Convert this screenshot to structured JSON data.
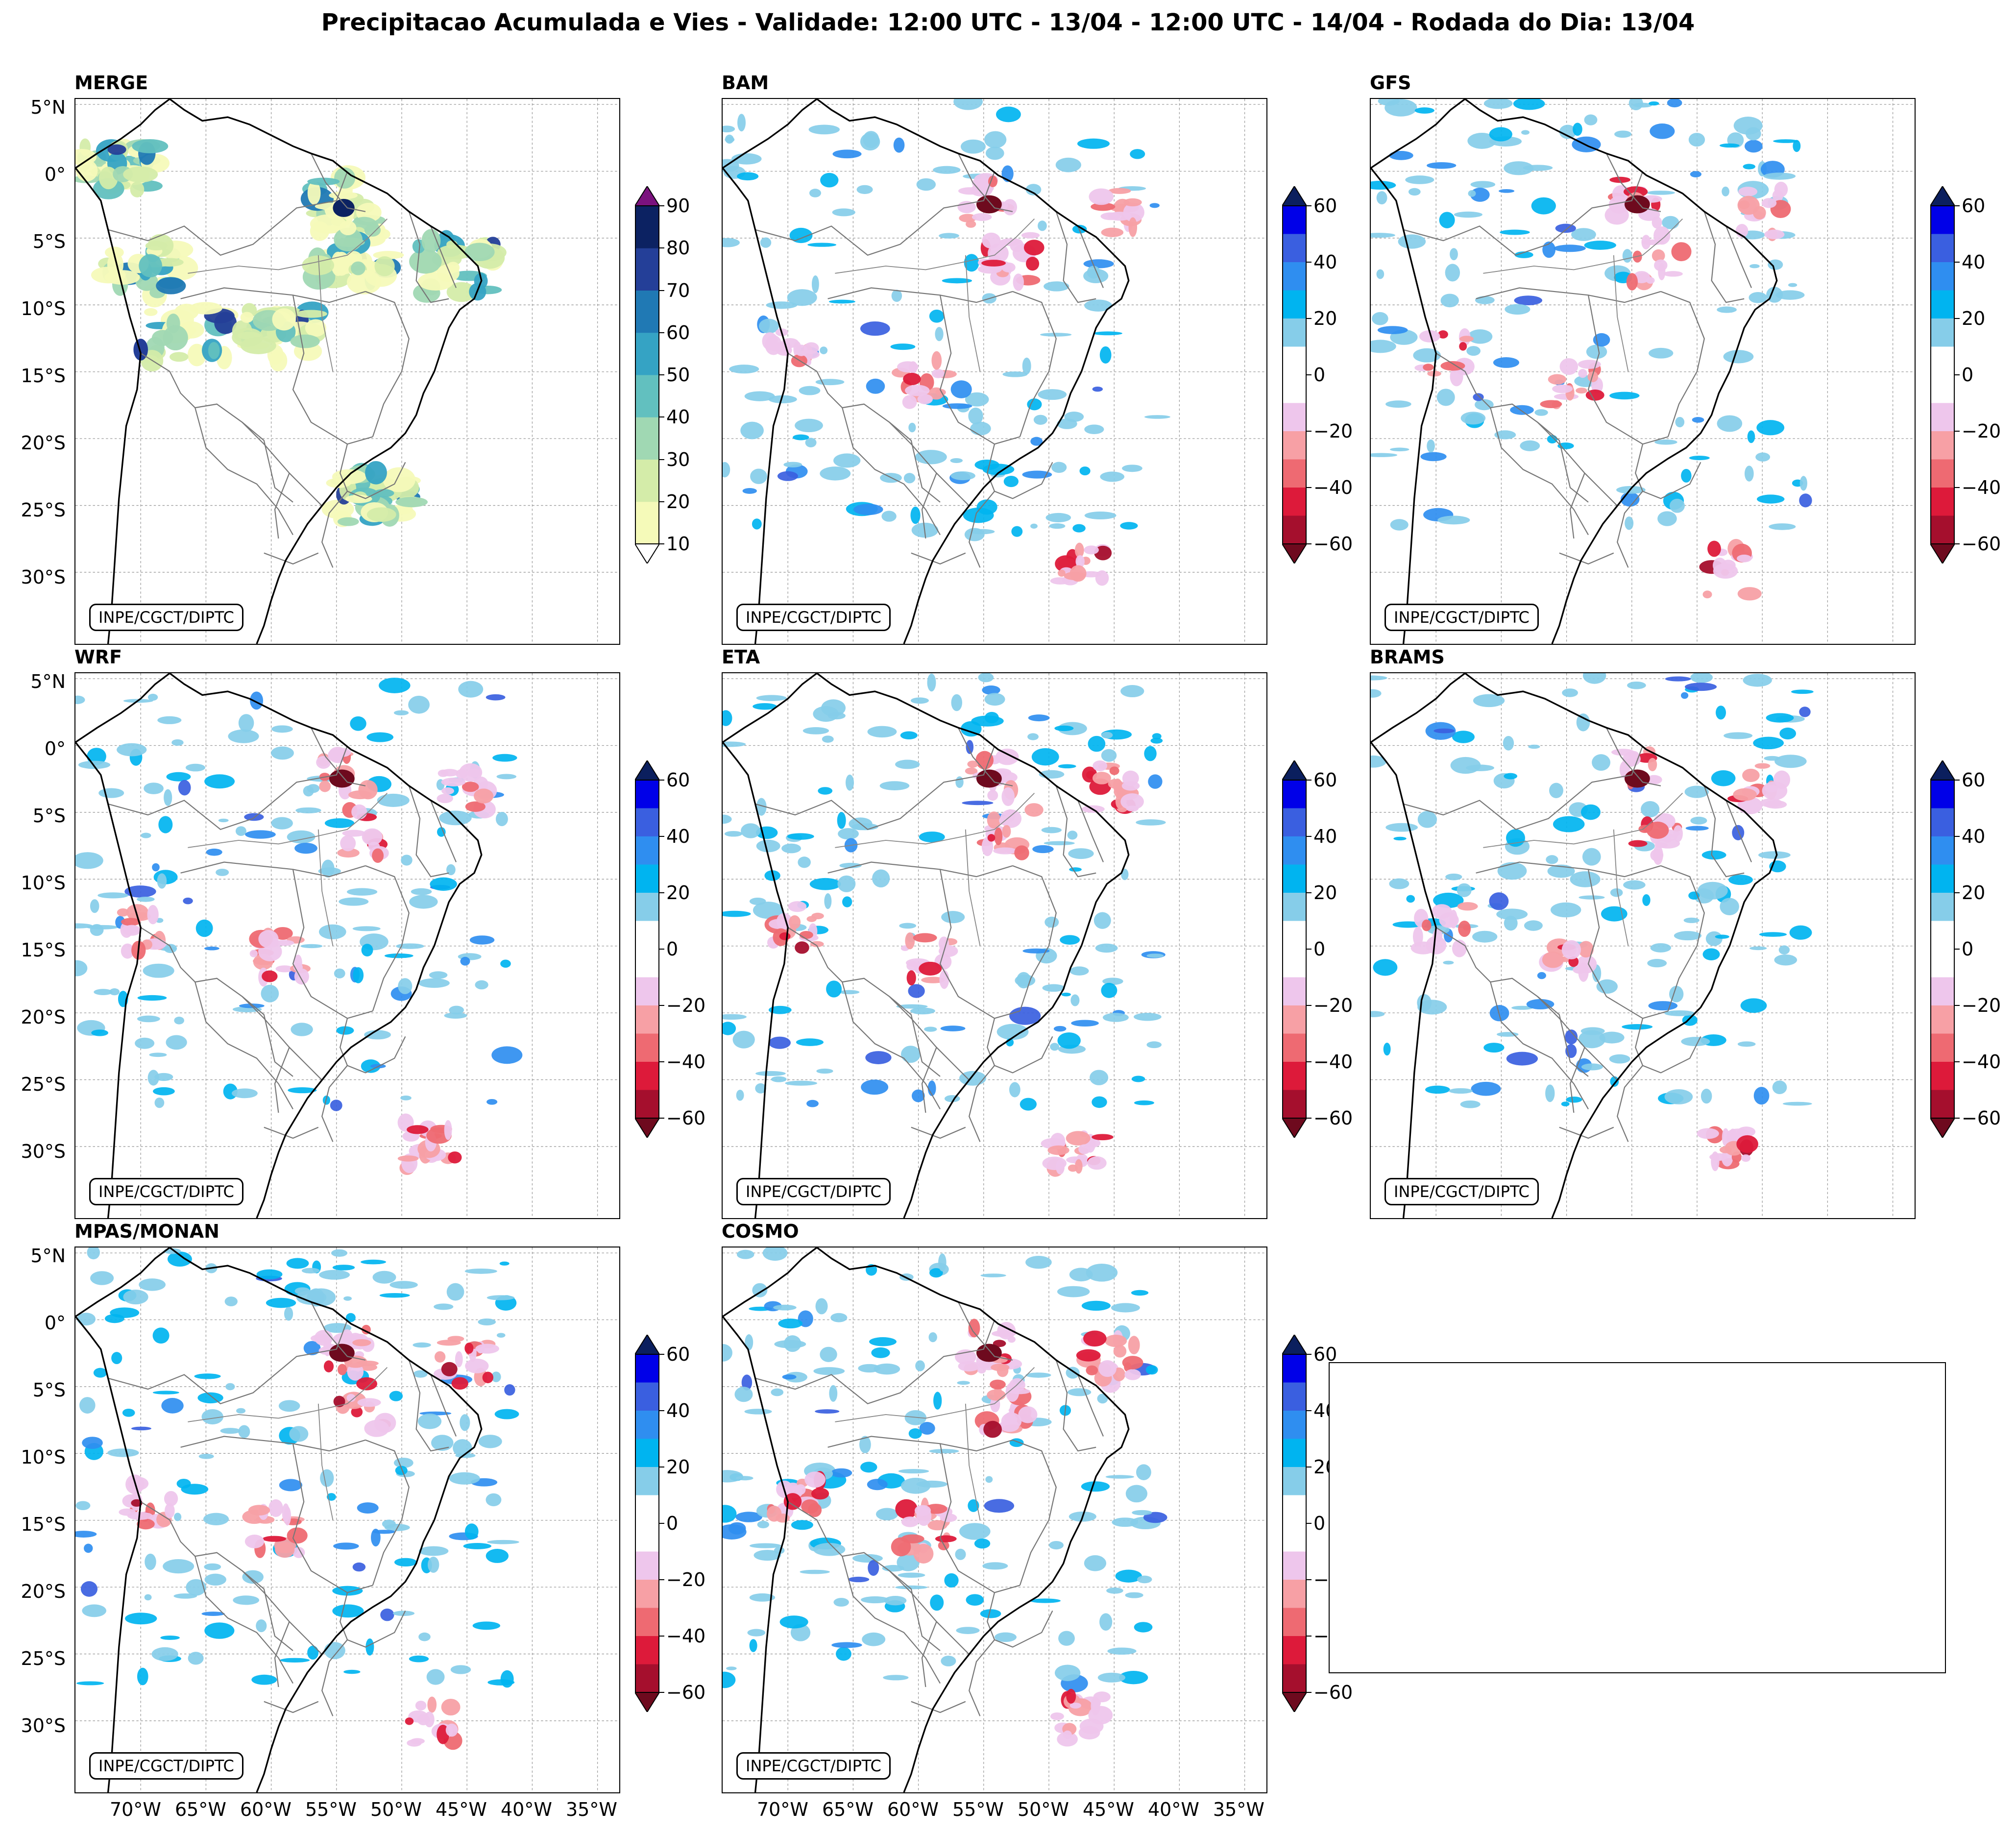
{
  "title": "Precipitacao Acumulada e Vies - Validade: 12:00 UTC - 13/04 - 12:00 UTC - 14/04 - Rodada do Dia: 13/04",
  "credit": "INPE/CGCT/DIPTC",
  "panels": [
    {
      "name": "MERGE",
      "kind": "precip"
    },
    {
      "name": "BAM",
      "kind": "bias"
    },
    {
      "name": "GFS",
      "kind": "bias"
    },
    {
      "name": "WRF",
      "kind": "bias"
    },
    {
      "name": "ETA",
      "kind": "bias"
    },
    {
      "name": "BRAMS",
      "kind": "bias"
    },
    {
      "name": "MPAS/MONAN",
      "kind": "bias"
    },
    {
      "name": "COSMO",
      "kind": "bias"
    }
  ],
  "lat_labels": [
    "5°N",
    "0°",
    "5°S",
    "10°S",
    "15°S",
    "20°S",
    "25°S",
    "30°S"
  ],
  "lon_labels": [
    "70°W",
    "65°W",
    "60°W",
    "55°W",
    "50°W",
    "45°W",
    "40°W",
    "35°W"
  ],
  "precip_scale": {
    "ticks": [
      "10",
      "20",
      "30",
      "40",
      "50",
      "60",
      "70",
      "80",
      "90"
    ],
    "colors": [
      "#f5fab9",
      "#d4eca9",
      "#a0d8b3",
      "#62c0bf",
      "#35a3c4",
      "#2079b4",
      "#243f98",
      "#0c2262"
    ],
    "over": "#7b127e",
    "under": "#ffffff"
  },
  "bias_scale": {
    "ticks": [
      "60",
      "40",
      "20",
      "0",
      "−20",
      "−40",
      "−60"
    ],
    "colors": [
      "#0000e8",
      "#3a5fe0",
      "#2f8ef0",
      "#00b4f0",
      "#86cde9",
      "#ffffff",
      "#ffffff",
      "#eec6ec",
      "#f7a0a5",
      "#ee6a72",
      "#dd1a3a",
      "#a50f2d"
    ],
    "over": "#0b1f5e",
    "under": "#6e0a1e"
  }
}
